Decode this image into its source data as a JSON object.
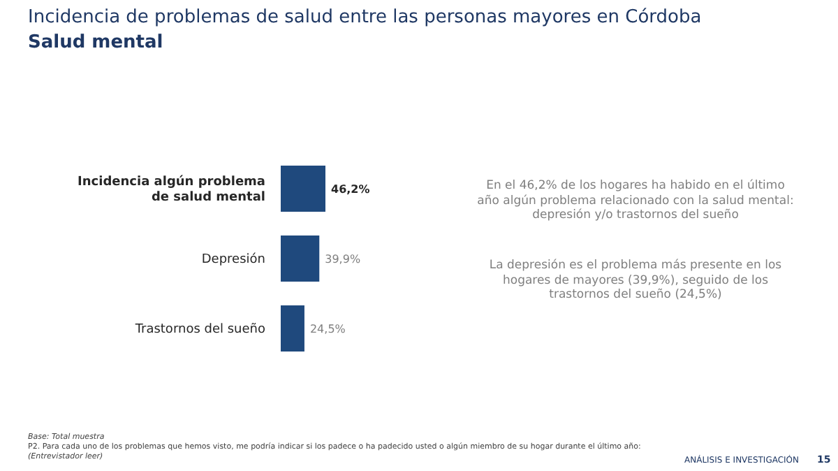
{
  "chart_data": {
    "type": "bar",
    "orientation": "horizontal",
    "title": "Incidencia de problemas de salud entre las personas mayores en Córdoba",
    "subtitle": "Salud mental",
    "categories": [
      "Incidencia algún problema de salud mental",
      "Depresión",
      "Trastornos del sueño"
    ],
    "values": [
      46.2,
      39.9,
      24.5
    ],
    "color": "#1f497d",
    "value_labels": [
      "46,2%",
      "39,9%",
      "24,5%"
    ],
    "tick_labels": "y",
    "annotations": [
      "En el 46,2%  de los hogares ha habido en el último año algún problema relacionado con la salud mental: depresión y/o trastornos del sueño",
      "La depresión es el problema más presente en los hogares de mayores (39,9%), seguido de los trastornos del sueño (24,5%)",
      "Base: Total muestra",
      "P2. Para cada uno de los problemas que hemos visto, me podría indicar si los padece o ha padecido usted o algún miembro de su hogar durante el último año:",
      "(Entrevistador leer)",
      "ANÁLISIS E INVESTIGACIÓN",
      "15"
    ]
  }
}
